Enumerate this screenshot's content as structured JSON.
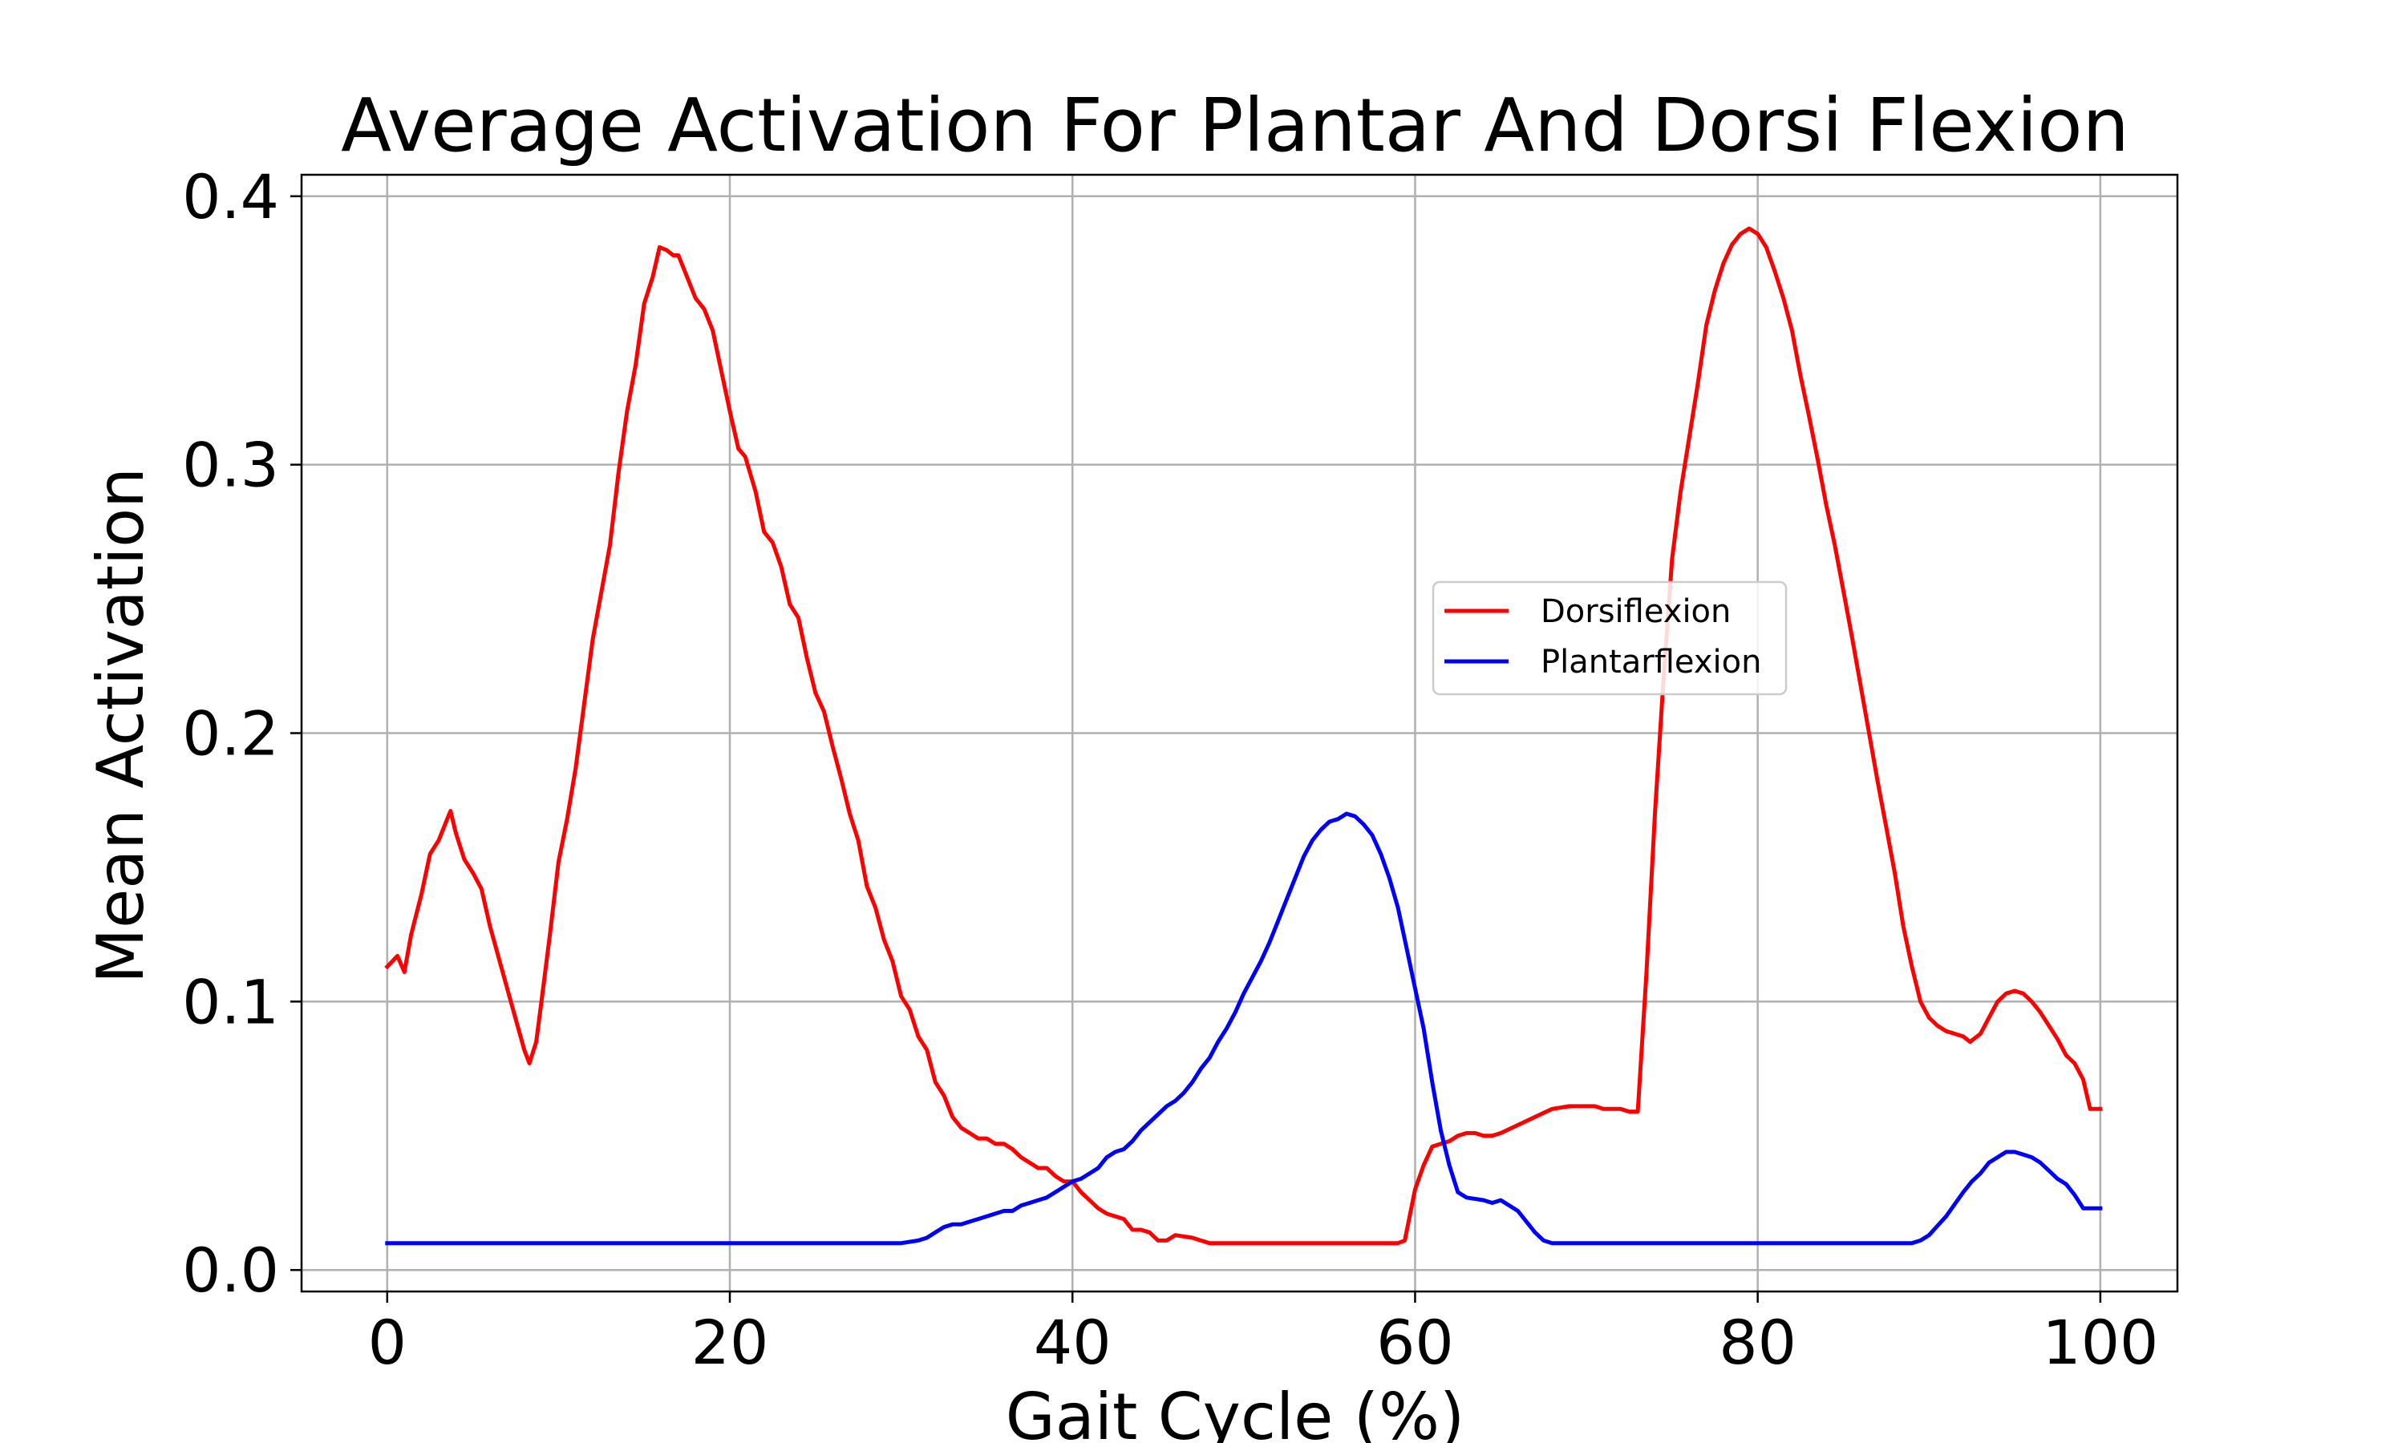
{
  "chart_data": {
    "type": "line",
    "title": "Average Activation For Plantar And Dorsi Flexion",
    "xlabel": "Gait Cycle (%)",
    "ylabel": "Mean Activation",
    "xlim": [
      -5,
      104.5
    ],
    "ylim": [
      -0.008,
      0.408
    ],
    "xticks": [
      0,
      20,
      40,
      60,
      80,
      100
    ],
    "xtick_labels": [
      "0",
      "20",
      "40",
      "60",
      "80",
      "100"
    ],
    "yticks": [
      0.0,
      0.1,
      0.2,
      0.3,
      0.4
    ],
    "ytick_labels": [
      "0.0",
      "0.1",
      "0.2",
      "0.3",
      "0.4"
    ],
    "grid": true,
    "legend": {
      "placement": "center-right"
    },
    "series": [
      {
        "name": "Dorsiflexion",
        "color": "#ff0000",
        "points": [
          [
            0,
            0.113
          ],
          [
            0.6,
            0.117
          ],
          [
            1,
            0.111
          ],
          [
            1.4,
            0.125
          ],
          [
            2,
            0.14
          ],
          [
            2.5,
            0.155
          ],
          [
            3,
            0.16
          ],
          [
            3.5,
            0.168
          ],
          [
            3.7,
            0.171
          ],
          [
            4,
            0.163
          ],
          [
            4.5,
            0.153
          ],
          [
            5,
            0.148
          ],
          [
            5.5,
            0.142
          ],
          [
            6,
            0.128
          ],
          [
            7,
            0.105
          ],
          [
            8,
            0.082
          ],
          [
            8.3,
            0.077
          ],
          [
            8.7,
            0.085
          ],
          [
            9,
            0.1
          ],
          [
            9.5,
            0.125
          ],
          [
            10,
            0.152
          ],
          [
            10.5,
            0.168
          ],
          [
            11,
            0.187
          ],
          [
            12,
            0.235
          ],
          [
            13,
            0.27
          ],
          [
            13.5,
            0.297
          ],
          [
            14,
            0.32
          ],
          [
            14.5,
            0.337
          ],
          [
            15,
            0.36
          ],
          [
            15.5,
            0.37
          ],
          [
            15.9,
            0.381
          ],
          [
            16.3,
            0.38
          ],
          [
            16.7,
            0.378
          ],
          [
            17,
            0.378
          ],
          [
            17.5,
            0.37
          ],
          [
            18,
            0.362
          ],
          [
            18.5,
            0.358
          ],
          [
            19,
            0.35
          ],
          [
            19.5,
            0.335
          ],
          [
            20,
            0.32
          ],
          [
            20.5,
            0.306
          ],
          [
            20.9,
            0.303
          ],
          [
            21.5,
            0.29
          ],
          [
            22,
            0.275
          ],
          [
            22.5,
            0.271
          ],
          [
            23,
            0.262
          ],
          [
            23.5,
            0.248
          ],
          [
            24,
            0.243
          ],
          [
            24.5,
            0.228
          ],
          [
            25,
            0.215
          ],
          [
            25.5,
            0.208
          ],
          [
            26,
            0.195
          ],
          [
            26.5,
            0.183
          ],
          [
            27,
            0.17
          ],
          [
            27.5,
            0.16
          ],
          [
            28,
            0.143
          ],
          [
            28.5,
            0.135
          ],
          [
            29,
            0.123
          ],
          [
            29.5,
            0.115
          ],
          [
            30,
            0.102
          ],
          [
            30.5,
            0.097
          ],
          [
            31,
            0.087
          ],
          [
            31.5,
            0.082
          ],
          [
            32,
            0.07
          ],
          [
            32.5,
            0.065
          ],
          [
            33,
            0.057
          ],
          [
            33.5,
            0.053
          ],
          [
            34,
            0.051
          ],
          [
            34.5,
            0.049
          ],
          [
            35,
            0.049
          ],
          [
            35.5,
            0.047
          ],
          [
            36,
            0.047
          ],
          [
            36.5,
            0.045
          ],
          [
            37,
            0.042
          ],
          [
            37.5,
            0.04
          ],
          [
            38,
            0.038
          ],
          [
            38.5,
            0.038
          ],
          [
            39,
            0.035
          ],
          [
            39.5,
            0.033
          ],
          [
            40,
            0.033
          ],
          [
            40.5,
            0.029
          ],
          [
            41,
            0.026
          ],
          [
            41.5,
            0.023
          ],
          [
            42,
            0.021
          ],
          [
            42.5,
            0.02
          ],
          [
            43,
            0.019
          ],
          [
            43.5,
            0.015
          ],
          [
            44,
            0.015
          ],
          [
            44.5,
            0.014
          ],
          [
            45,
            0.011
          ],
          [
            45.5,
            0.011
          ],
          [
            46,
            0.013
          ],
          [
            47,
            0.012
          ],
          [
            47.5,
            0.011
          ],
          [
            48,
            0.01
          ],
          [
            50,
            0.01
          ],
          [
            55,
            0.01
          ],
          [
            59,
            0.01
          ],
          [
            59.4,
            0.011
          ],
          [
            60,
            0.03
          ],
          [
            60.5,
            0.039
          ],
          [
            61,
            0.046
          ],
          [
            61.5,
            0.047
          ],
          [
            62,
            0.048
          ],
          [
            62.5,
            0.05
          ],
          [
            63,
            0.051
          ],
          [
            63.5,
            0.051
          ],
          [
            64,
            0.05
          ],
          [
            64.5,
            0.05
          ],
          [
            65,
            0.051
          ],
          [
            66,
            0.054
          ],
          [
            67,
            0.057
          ],
          [
            68,
            0.06
          ],
          [
            69,
            0.061
          ],
          [
            70,
            0.061
          ],
          [
            70.5,
            0.061
          ],
          [
            71,
            0.06
          ],
          [
            72,
            0.06
          ],
          [
            72.5,
            0.059
          ],
          [
            73,
            0.059
          ],
          [
            73.5,
            0.11
          ],
          [
            74,
            0.17
          ],
          [
            74.5,
            0.22
          ],
          [
            75,
            0.265
          ],
          [
            75.5,
            0.29
          ],
          [
            76,
            0.31
          ],
          [
            76.5,
            0.33
          ],
          [
            77,
            0.352
          ],
          [
            77.5,
            0.365
          ],
          [
            78,
            0.375
          ],
          [
            78.5,
            0.382
          ],
          [
            79,
            0.386
          ],
          [
            79.5,
            0.388
          ],
          [
            80,
            0.386
          ],
          [
            80.5,
            0.381
          ],
          [
            81,
            0.372
          ],
          [
            81.5,
            0.362
          ],
          [
            82,
            0.35
          ],
          [
            82.5,
            0.333
          ],
          [
            83,
            0.318
          ],
          [
            83.5,
            0.302
          ],
          [
            84,
            0.285
          ],
          [
            84.5,
            0.27
          ],
          [
            85,
            0.253
          ],
          [
            85.5,
            0.236
          ],
          [
            86,
            0.218
          ],
          [
            86.5,
            0.2
          ],
          [
            87,
            0.182
          ],
          [
            87.5,
            0.165
          ],
          [
            88,
            0.148
          ],
          [
            88.5,
            0.128
          ],
          [
            89,
            0.113
          ],
          [
            89.5,
            0.1
          ],
          [
            90,
            0.094
          ],
          [
            90.5,
            0.091
          ],
          [
            91,
            0.089
          ],
          [
            91.5,
            0.088
          ],
          [
            92,
            0.087
          ],
          [
            92.4,
            0.085
          ],
          [
            93,
            0.088
          ],
          [
            93.5,
            0.094
          ],
          [
            94,
            0.1
          ],
          [
            94.5,
            0.103
          ],
          [
            95,
            0.104
          ],
          [
            95.5,
            0.103
          ],
          [
            96,
            0.1
          ],
          [
            96.5,
            0.096
          ],
          [
            97,
            0.091
          ],
          [
            97.5,
            0.086
          ],
          [
            98,
            0.08
          ],
          [
            98.5,
            0.077
          ],
          [
            99,
            0.071
          ],
          [
            99.4,
            0.06
          ],
          [
            100,
            0.06
          ]
        ]
      },
      {
        "name": "Plantarflexion",
        "color": "#0000ff",
        "points": [
          [
            0,
            0.01
          ],
          [
            10,
            0.01
          ],
          [
            20,
            0.01
          ],
          [
            25,
            0.01
          ],
          [
            28,
            0.01
          ],
          [
            29,
            0.01
          ],
          [
            30,
            0.01
          ],
          [
            31,
            0.011
          ],
          [
            31.5,
            0.012
          ],
          [
            32,
            0.014
          ],
          [
            32.5,
            0.016
          ],
          [
            33,
            0.017
          ],
          [
            33.5,
            0.017
          ],
          [
            34,
            0.018
          ],
          [
            34.5,
            0.019
          ],
          [
            35,
            0.02
          ],
          [
            35.5,
            0.021
          ],
          [
            36,
            0.022
          ],
          [
            36.5,
            0.022
          ],
          [
            37,
            0.024
          ],
          [
            37.5,
            0.025
          ],
          [
            38,
            0.026
          ],
          [
            38.5,
            0.027
          ],
          [
            39,
            0.029
          ],
          [
            39.5,
            0.031
          ],
          [
            40,
            0.033
          ],
          [
            40.5,
            0.034
          ],
          [
            41,
            0.036
          ],
          [
            41.5,
            0.038
          ],
          [
            42,
            0.042
          ],
          [
            42.5,
            0.044
          ],
          [
            43,
            0.045
          ],
          [
            43.5,
            0.048
          ],
          [
            44,
            0.052
          ],
          [
            44.5,
            0.055
          ],
          [
            45,
            0.058
          ],
          [
            45.5,
            0.061
          ],
          [
            46,
            0.063
          ],
          [
            46.5,
            0.066
          ],
          [
            47,
            0.07
          ],
          [
            47.5,
            0.075
          ],
          [
            48,
            0.079
          ],
          [
            48.5,
            0.085
          ],
          [
            49,
            0.09
          ],
          [
            49.5,
            0.096
          ],
          [
            50,
            0.103
          ],
          [
            50.5,
            0.109
          ],
          [
            51,
            0.115
          ],
          [
            51.5,
            0.122
          ],
          [
            52,
            0.13
          ],
          [
            52.5,
            0.138
          ],
          [
            53,
            0.146
          ],
          [
            53.5,
            0.154
          ],
          [
            54,
            0.16
          ],
          [
            54.5,
            0.164
          ],
          [
            55,
            0.167
          ],
          [
            55.5,
            0.168
          ],
          [
            56,
            0.17
          ],
          [
            56.5,
            0.169
          ],
          [
            57,
            0.166
          ],
          [
            57.5,
            0.162
          ],
          [
            58,
            0.155
          ],
          [
            58.5,
            0.146
          ],
          [
            59,
            0.135
          ],
          [
            59.5,
            0.12
          ],
          [
            60,
            0.105
          ],
          [
            60.5,
            0.09
          ],
          [
            61,
            0.07
          ],
          [
            61.5,
            0.052
          ],
          [
            62,
            0.039
          ],
          [
            62.5,
            0.029
          ],
          [
            63,
            0.027
          ],
          [
            64,
            0.026
          ],
          [
            64.5,
            0.025
          ],
          [
            65,
            0.026
          ],
          [
            65.5,
            0.024
          ],
          [
            66,
            0.022
          ],
          [
            66.5,
            0.018
          ],
          [
            67,
            0.014
          ],
          [
            67.5,
            0.011
          ],
          [
            68,
            0.01
          ],
          [
            70,
            0.01
          ],
          [
            75,
            0.01
          ],
          [
            80,
            0.01
          ],
          [
            85,
            0.01
          ],
          [
            89,
            0.01
          ],
          [
            89.5,
            0.011
          ],
          [
            90,
            0.013
          ],
          [
            91,
            0.02
          ],
          [
            92,
            0.029
          ],
          [
            92.5,
            0.033
          ],
          [
            93,
            0.036
          ],
          [
            93.5,
            0.04
          ],
          [
            94,
            0.042
          ],
          [
            94.5,
            0.044
          ],
          [
            95,
            0.044
          ],
          [
            95.5,
            0.043
          ],
          [
            96,
            0.042
          ],
          [
            96.5,
            0.04
          ],
          [
            97,
            0.037
          ],
          [
            97.5,
            0.034
          ],
          [
            98,
            0.032
          ],
          [
            98.5,
            0.028
          ],
          [
            99,
            0.023
          ],
          [
            100,
            0.023
          ]
        ]
      }
    ]
  }
}
